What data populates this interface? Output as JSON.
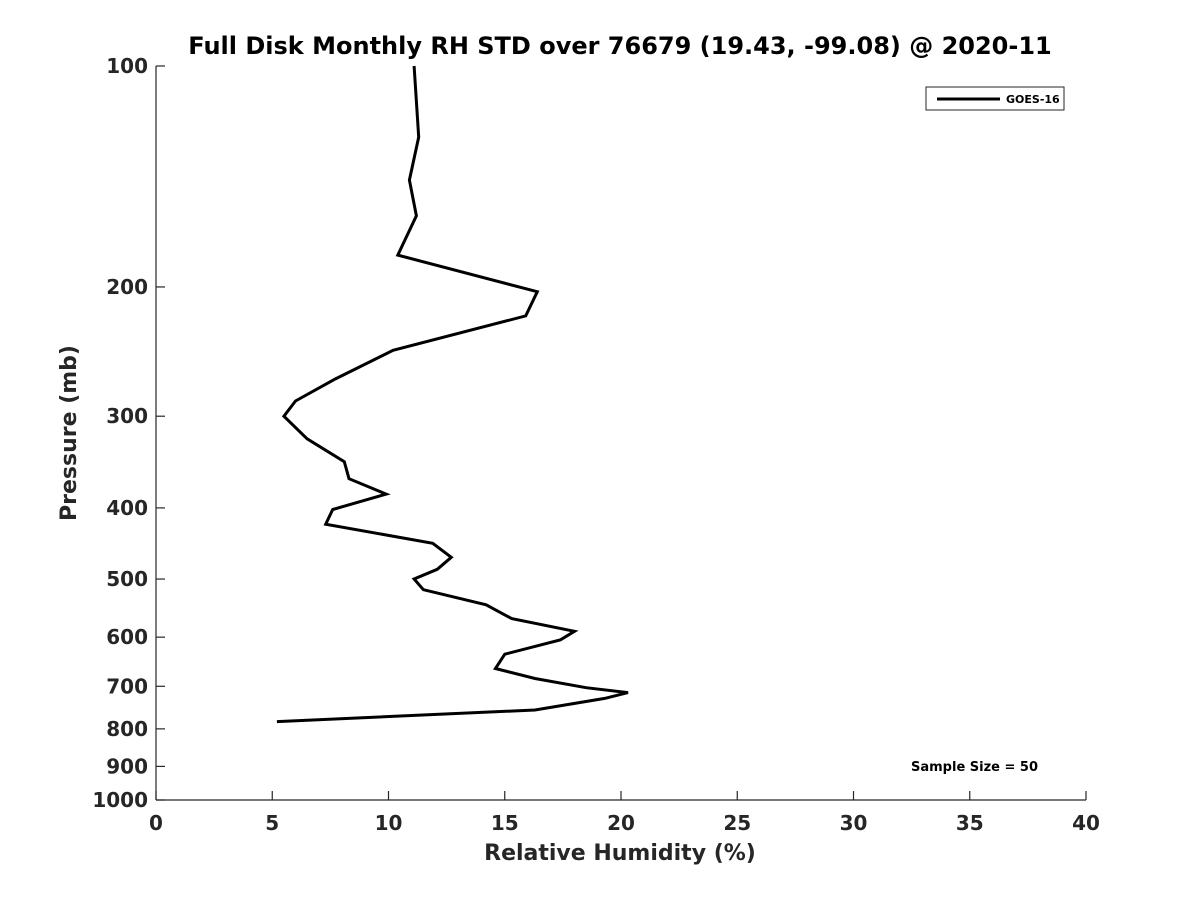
{
  "chart_data": {
    "type": "line",
    "title": "Full Disk Monthly RH STD over 76679 (19.43, -99.08) @ 2020-11",
    "xlabel": "Relative Humidity (%)",
    "ylabel": "Pressure (mb)",
    "xlim": [
      0,
      40
    ],
    "ylim": [
      100,
      1000
    ],
    "yscale": "log",
    "y_reversed": true,
    "xticks": [
      0,
      5,
      10,
      15,
      20,
      25,
      30,
      35,
      40
    ],
    "yticks": [
      100,
      200,
      300,
      400,
      500,
      600,
      700,
      800,
      900,
      1000
    ],
    "grid": false,
    "legend_position": "top-right",
    "annotation": "Sample Size = 50",
    "series": [
      {
        "name": "GOES-16",
        "color": "#000000",
        "points": [
          [
            11.1,
            100
          ],
          [
            11.3,
            125
          ],
          [
            10.9,
            143
          ],
          [
            11.2,
            160
          ],
          [
            10.4,
            181
          ],
          [
            16.4,
            203
          ],
          [
            15.9,
            219
          ],
          [
            10.2,
            244
          ],
          [
            7.7,
            267
          ],
          [
            6.0,
            286
          ],
          [
            5.5,
            300
          ],
          [
            6.5,
            322
          ],
          [
            8.1,
            346
          ],
          [
            8.3,
            365
          ],
          [
            9.9,
            383
          ],
          [
            7.6,
            402
          ],
          [
            7.3,
            421
          ],
          [
            11.9,
            447
          ],
          [
            12.7,
            467
          ],
          [
            12.1,
            485
          ],
          [
            11.1,
            500
          ],
          [
            11.5,
            517
          ],
          [
            14.2,
            542
          ],
          [
            15.3,
            566
          ],
          [
            18.0,
            589
          ],
          [
            17.4,
            605
          ],
          [
            15.0,
            633
          ],
          [
            14.6,
            662
          ],
          [
            16.3,
            683
          ],
          [
            18.5,
            703
          ],
          [
            20.3,
            714
          ],
          [
            19.3,
            727
          ],
          [
            16.3,
            754
          ],
          [
            5.2,
            782
          ]
        ]
      }
    ]
  }
}
